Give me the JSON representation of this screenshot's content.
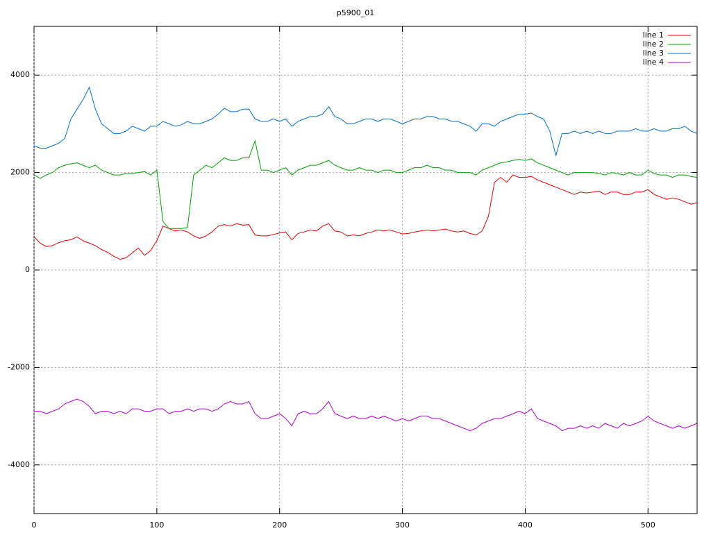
{
  "chart_data": {
    "type": "line",
    "title": "p5900_01",
    "x": [
      0,
      5,
      10,
      15,
      20,
      25,
      30,
      35,
      40,
      45,
      50,
      55,
      60,
      65,
      70,
      75,
      80,
      85,
      90,
      95,
      100,
      105,
      110,
      115,
      120,
      125,
      130,
      135,
      140,
      145,
      150,
      155,
      160,
      165,
      170,
      175,
      180,
      185,
      190,
      195,
      200,
      205,
      210,
      215,
      220,
      225,
      230,
      235,
      240,
      245,
      250,
      255,
      260,
      265,
      270,
      275,
      280,
      285,
      290,
      295,
      300,
      305,
      310,
      315,
      320,
      325,
      330,
      335,
      340,
      345,
      350,
      355,
      360,
      365,
      370,
      375,
      380,
      385,
      390,
      395,
      400,
      405,
      410,
      415,
      420,
      425,
      430,
      435,
      440,
      445,
      450,
      455,
      460,
      465,
      470,
      475,
      480,
      485,
      490,
      495,
      500,
      505,
      510,
      515,
      520,
      525,
      530,
      535,
      540
    ],
    "series": [
      {
        "name": "line 1",
        "color": "#e00000",
        "values": [
          680,
          550,
          480,
          500,
          560,
          600,
          620,
          680,
          600,
          550,
          500,
          420,
          360,
          280,
          220,
          250,
          350,
          450,
          300,
          400,
          600,
          900,
          850,
          800,
          820,
          780,
          700,
          650,
          700,
          780,
          900,
          930,
          900,
          950,
          920,
          930,
          720,
          700,
          700,
          730,
          760,
          780,
          620,
          750,
          780,
          820,
          800,
          900,
          950,
          800,
          780,
          700,
          720,
          700,
          750,
          780,
          820,
          800,
          820,
          780,
          740,
          750,
          780,
          800,
          820,
          800,
          820,
          840,
          800,
          780,
          800,
          750,
          720,
          800,
          1100,
          1800,
          1900,
          1800,
          1950,
          1900,
          1900,
          1920,
          1850,
          1800,
          1750,
          1700,
          1650,
          1600,
          1550,
          1600,
          1580,
          1600,
          1620,
          1550,
          1600,
          1600,
          1550,
          1550,
          1600,
          1600,
          1650,
          1550,
          1500,
          1450,
          1480,
          1450,
          1400,
          1350,
          1380
        ]
      },
      {
        "name": "line 2",
        "color": "#00a000",
        "values": [
          1950,
          1880,
          1950,
          2000,
          2100,
          2150,
          2180,
          2200,
          2150,
          2100,
          2150,
          2050,
          2000,
          1950,
          1950,
          1980,
          1980,
          2000,
          2020,
          1950,
          2050,
          1000,
          850,
          850,
          850,
          870,
          1950,
          2050,
          2150,
          2100,
          2200,
          2300,
          2250,
          2250,
          2300,
          2300,
          2650,
          2050,
          2050,
          2000,
          2050,
          2100,
          1950,
          2050,
          2100,
          2150,
          2150,
          2200,
          2250,
          2150,
          2100,
          2050,
          2050,
          2100,
          2050,
          2050,
          2000,
          2050,
          2050,
          2000,
          2000,
          2050,
          2100,
          2100,
          2150,
          2100,
          2100,
          2050,
          2050,
          2000,
          2000,
          2000,
          1950,
          2050,
          2100,
          2150,
          2200,
          2220,
          2250,
          2270,
          2250,
          2280,
          2200,
          2150,
          2100,
          2050,
          2000,
          1950,
          2000,
          2000,
          2000,
          2000,
          1980,
          1950,
          2000,
          1980,
          1950,
          2000,
          1950,
          1950,
          2050,
          1980,
          1950,
          1950,
          1900,
          1950,
          1950,
          1920,
          1900
        ]
      },
      {
        "name": "line 3",
        "color": "#0070d0",
        "values": [
          2550,
          2500,
          2500,
          2550,
          2600,
          2700,
          3100,
          3300,
          3500,
          3750,
          3300,
          3000,
          2900,
          2800,
          2800,
          2850,
          2950,
          2900,
          2850,
          2950,
          2950,
          3050,
          3000,
          2950,
          2980,
          3050,
          3000,
          3000,
          3050,
          3100,
          3200,
          3320,
          3250,
          3250,
          3300,
          3300,
          3100,
          3050,
          3050,
          3100,
          3050,
          3100,
          2950,
          3050,
          3100,
          3150,
          3150,
          3200,
          3350,
          3150,
          3100,
          3000,
          3000,
          3050,
          3100,
          3100,
          3050,
          3100,
          3100,
          3050,
          3000,
          3050,
          3100,
          3100,
          3150,
          3150,
          3100,
          3100,
          3050,
          3050,
          3000,
          2950,
          2850,
          3000,
          3000,
          2950,
          3050,
          3100,
          3150,
          3200,
          3200,
          3220,
          3150,
          3100,
          2850,
          2350,
          2800,
          2800,
          2850,
          2800,
          2850,
          2800,
          2850,
          2800,
          2800,
          2850,
          2850,
          2850,
          2900,
          2850,
          2850,
          2900,
          2850,
          2850,
          2900,
          2900,
          2950,
          2850,
          2800
        ]
      },
      {
        "name": "line 4",
        "color": "#b000d0",
        "values": [
          -2900,
          -2900,
          -2950,
          -2900,
          -2850,
          -2750,
          -2700,
          -2650,
          -2700,
          -2800,
          -2950,
          -2900,
          -2900,
          -2950,
          -2900,
          -2950,
          -2850,
          -2850,
          -2900,
          -2900,
          -2850,
          -2850,
          -2950,
          -2900,
          -2900,
          -2850,
          -2900,
          -2850,
          -2850,
          -2900,
          -2850,
          -2750,
          -2700,
          -2750,
          -2750,
          -2700,
          -2950,
          -3050,
          -3050,
          -3000,
          -2950,
          -3050,
          -3200,
          -2950,
          -2900,
          -2950,
          -2950,
          -2850,
          -2700,
          -2950,
          -3000,
          -3050,
          -3000,
          -3050,
          -3050,
          -3000,
          -3050,
          -3000,
          -3050,
          -3100,
          -3050,
          -3100,
          -3050,
          -3000,
          -3000,
          -3050,
          -3050,
          -3100,
          -3150,
          -3200,
          -3250,
          -3300,
          -3250,
          -3150,
          -3100,
          -3050,
          -3050,
          -3000,
          -2950,
          -2900,
          -2950,
          -2850,
          -3050,
          -3100,
          -3150,
          -3200,
          -3300,
          -3250,
          -3250,
          -3200,
          -3250,
          -3200,
          -3250,
          -3150,
          -3200,
          -3250,
          -3150,
          -3200,
          -3150,
          -3100,
          -3000,
          -3100,
          -3150,
          -3200,
          -3250,
          -3200,
          -3250,
          -3200,
          -3150
        ]
      }
    ],
    "xlim": [
      0,
      540
    ],
    "ylim": [
      -5000,
      5000
    ],
    "xticks": [
      0,
      100,
      200,
      300,
      400,
      500
    ],
    "yticks": [
      -4000,
      -2000,
      0,
      2000,
      4000
    ],
    "grid": true,
    "legend": "top-right"
  }
}
